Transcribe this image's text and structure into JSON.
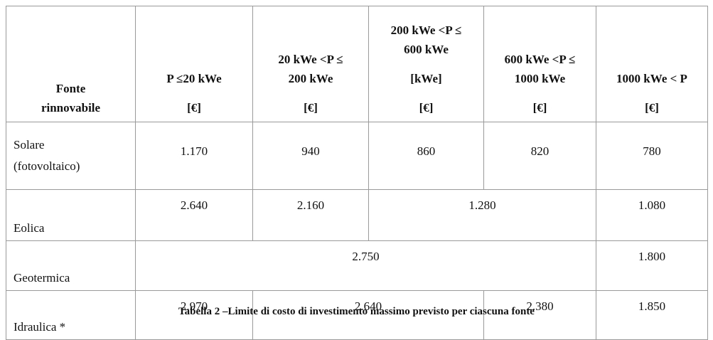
{
  "table": {
    "header": [
      [
        [
          "Fonte",
          "rinnovabile"
        ]
      ],
      [
        [
          "P ≤20 kWe"
        ],
        [
          "[€]"
        ]
      ],
      [
        [
          "20 kWe <P ≤",
          "200 kWe"
        ],
        [
          "[€]"
        ]
      ],
      [
        [
          "200 kWe <P ≤",
          "600 kWe"
        ],
        [
          "[kWe]"
        ],
        [
          "[€]"
        ]
      ],
      [
        [
          "600 kWe <P ≤",
          "1000 kWe"
        ],
        [
          "[€]"
        ]
      ],
      [
        [
          "1000 kWe < P"
        ],
        [
          "[€]"
        ]
      ]
    ],
    "rows": [
      {
        "label": [
          "Solare",
          "(fotovoltaico)"
        ],
        "cells": [
          "1.170",
          "940",
          "860",
          "820",
          "780"
        ]
      },
      {
        "label": [
          "Eolica"
        ],
        "cells": [
          "2.640",
          "2.160",
          "1.280",
          null,
          "1.080"
        ]
      },
      {
        "label": [
          "Geotermica"
        ],
        "cells": [
          "2.750",
          null,
          null,
          null,
          "1.800"
        ]
      },
      {
        "label": [
          "Idraulica *"
        ],
        "cells": [
          "2.970",
          "2.640",
          null,
          "2.380",
          "1.850"
        ]
      }
    ]
  },
  "caption": "Tabella 2 –Limite di costo di investimento massimo previsto per ciascuna fonte"
}
